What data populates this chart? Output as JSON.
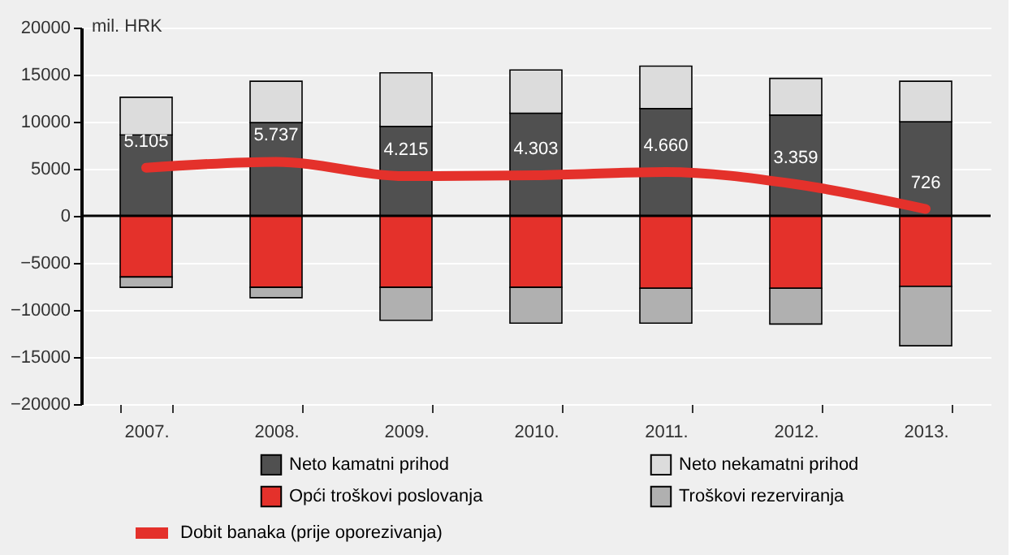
{
  "chart_data": {
    "type": "bar",
    "stacked": true,
    "ylabel": "mil. HRK",
    "categories": [
      "2007.",
      "2008.",
      "2009.",
      "2010.",
      "2011.",
      "2012.",
      "2013."
    ],
    "ylim": [
      -20000,
      20000
    ],
    "yticks": [
      -20000,
      -15000,
      -10000,
      -5000,
      0,
      5000,
      10000,
      15000,
      20000
    ],
    "grid": "y",
    "legend": "bottom",
    "ref_lines": [
      {
        "axis": "y",
        "value": 0,
        "color": "#000000"
      }
    ],
    "series": [
      {
        "name": "Neto kamatni prihod",
        "color": "#505050",
        "values": [
          8600,
          9900,
          9500,
          10900,
          11400,
          10700,
          10000
        ]
      },
      {
        "name": "Neto nekamatni prihod",
        "color": "#dcdcdc",
        "values": [
          4000,
          4400,
          5700,
          4600,
          4500,
          3900,
          4300
        ]
      },
      {
        "name": "Opći troškovi poslovanja",
        "color": "#e4312b",
        "values": [
          -6500,
          -7600,
          -7600,
          -7600,
          -7700,
          -7700,
          -7500
        ]
      },
      {
        "name": "Troškovi rezerviranja",
        "color": "#b0b0b0",
        "values": [
          -1100,
          -1100,
          -3500,
          -3800,
          -3700,
          -3800,
          -6300
        ]
      },
      {
        "name": "Dobit banaka (prije oporezivanja)",
        "type": "line",
        "color": "#e4312b",
        "values": [
          5105,
          5737,
          4215,
          4303,
          4660,
          3359,
          726
        ],
        "value_labels": [
          "5.105",
          "5.737",
          "4.215",
          "4.303",
          "4.660",
          "3.359",
          "726"
        ]
      }
    ]
  }
}
